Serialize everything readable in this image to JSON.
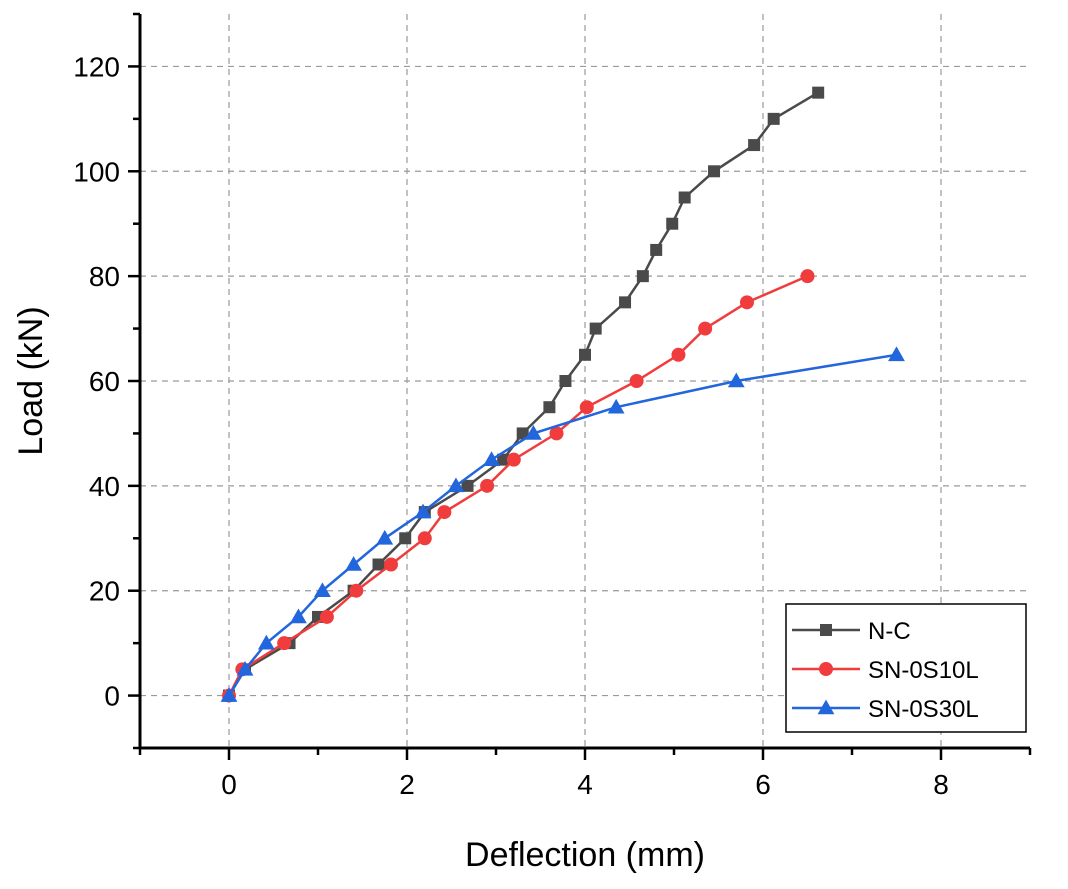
{
  "chart_data": {
    "type": "line",
    "title": "",
    "xlabel": "Deflection (mm)",
    "ylabel": "Load (kN)",
    "xlim": [
      -1,
      9
    ],
    "ylim": [
      -10,
      130
    ],
    "xticks": [
      0,
      2,
      4,
      6,
      8
    ],
    "yticks": [
      0,
      20,
      40,
      60,
      80,
      100,
      120
    ],
    "grid": true,
    "legend_position": "bottom-right",
    "series": [
      {
        "name": "N-C",
        "color": "#4a4a4a",
        "marker": "square",
        "x": [
          0,
          0.18,
          0.68,
          1.0,
          1.4,
          1.68,
          1.98,
          2.2,
          2.68,
          3.08,
          3.3,
          3.6,
          3.78,
          4.0,
          4.12,
          4.45,
          4.65,
          4.8,
          4.98,
          5.12,
          5.45,
          5.9,
          6.12,
          6.62
        ],
        "y": [
          0,
          5,
          10,
          15,
          20,
          25,
          30,
          35,
          40,
          45,
          50,
          55,
          60,
          65,
          70,
          75,
          80,
          85,
          90,
          95,
          100,
          105,
          110,
          115
        ]
      },
      {
        "name": "SN-0S10L",
        "color": "#f03c3c",
        "marker": "circle",
        "x": [
          0,
          0.15,
          0.62,
          1.1,
          1.43,
          1.82,
          2.2,
          2.42,
          2.9,
          3.2,
          3.68,
          4.02,
          4.58,
          5.05,
          5.35,
          5.82,
          6.5
        ],
        "y": [
          0,
          5,
          10,
          15,
          20,
          25,
          30,
          35,
          40,
          45,
          50,
          55,
          60,
          65,
          70,
          75,
          80
        ]
      },
      {
        "name": "SN-0S30L",
        "color": "#2266dd",
        "marker": "triangle",
        "x": [
          0,
          0.18,
          0.42,
          0.78,
          1.05,
          1.4,
          1.75,
          2.18,
          2.55,
          2.95,
          3.42,
          4.35,
          5.7,
          7.5
        ],
        "y": [
          0,
          5,
          10,
          15,
          20,
          25,
          30,
          35,
          40,
          45,
          50,
          55,
          60,
          65
        ]
      }
    ]
  }
}
